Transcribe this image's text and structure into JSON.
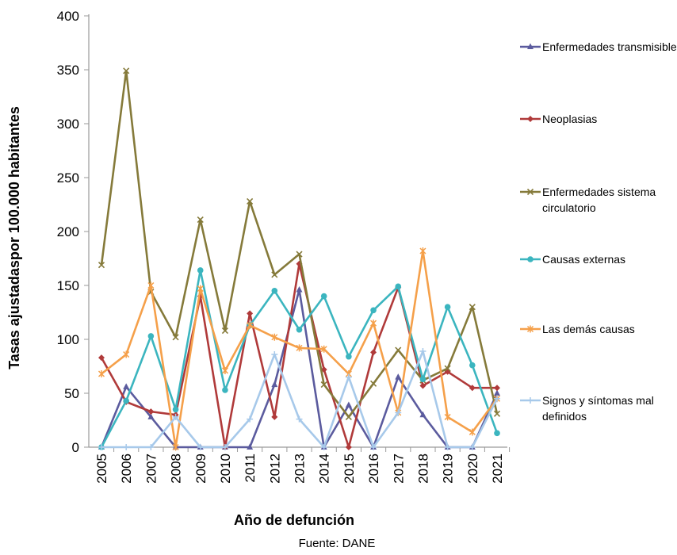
{
  "chart_data": {
    "type": "line",
    "title": "",
    "xlabel": "Año de defunción",
    "ylabel": "Tasas ajustadaspor 100.000 habitantes",
    "ylim": [
      0,
      400
    ],
    "yticks": [
      "0",
      "50",
      "100",
      "150",
      "200",
      "250",
      "300",
      "350",
      "400"
    ],
    "categories": [
      "2005",
      "2006",
      "2007",
      "2008",
      "2009",
      "2010",
      "2011",
      "2012",
      "2013",
      "2014",
      "2015",
      "2016",
      "2017",
      "2018",
      "2019",
      "2020",
      "2021"
    ],
    "grid": false,
    "legend_position": "right",
    "source": "Fuente: DANE",
    "series": [
      {
        "name": "Enfermedades transmisibles",
        "color": "#5b5b9e",
        "marker": "triangle",
        "values": [
          0,
          56,
          28,
          0,
          0,
          0,
          0,
          58,
          146,
          0,
          39,
          0,
          65,
          30,
          0,
          0,
          50
        ]
      },
      {
        "name": "Neoplasias",
        "color": "#b03a3a",
        "marker": "diamond",
        "values": [
          83,
          42,
          33,
          30,
          140,
          0,
          124,
          28,
          170,
          72,
          0,
          88,
          148,
          57,
          70,
          55,
          55
        ]
      },
      {
        "name": "Enfermedades sistema circulatorio",
        "color": "#857a3a",
        "marker": "x",
        "values": [
          169,
          349,
          144,
          102,
          211,
          108,
          228,
          160,
          179,
          58,
          28,
          59,
          90,
          62,
          73,
          130,
          31
        ]
      },
      {
        "name": "Causas externas",
        "color": "#3bb5bf",
        "marker": "circle",
        "values": [
          0,
          43,
          103,
          35,
          164,
          53,
          113,
          145,
          109,
          140,
          84,
          127,
          149,
          63,
          130,
          76,
          13
        ]
      },
      {
        "name": "Las demás causas",
        "color": "#f5a04a",
        "marker": "star",
        "values": [
          68,
          86,
          150,
          0,
          147,
          71,
          113,
          102,
          92,
          91,
          68,
          115,
          32,
          182,
          28,
          14,
          45
        ]
      },
      {
        "name": "Signos y síntomas mal definidos",
        "color": "#a7c9ea",
        "marker": "plus",
        "values": [
          0,
          0,
          0,
          28,
          0,
          0,
          26,
          86,
          26,
          0,
          65,
          0,
          32,
          89,
          0,
          0,
          45
        ]
      }
    ]
  }
}
